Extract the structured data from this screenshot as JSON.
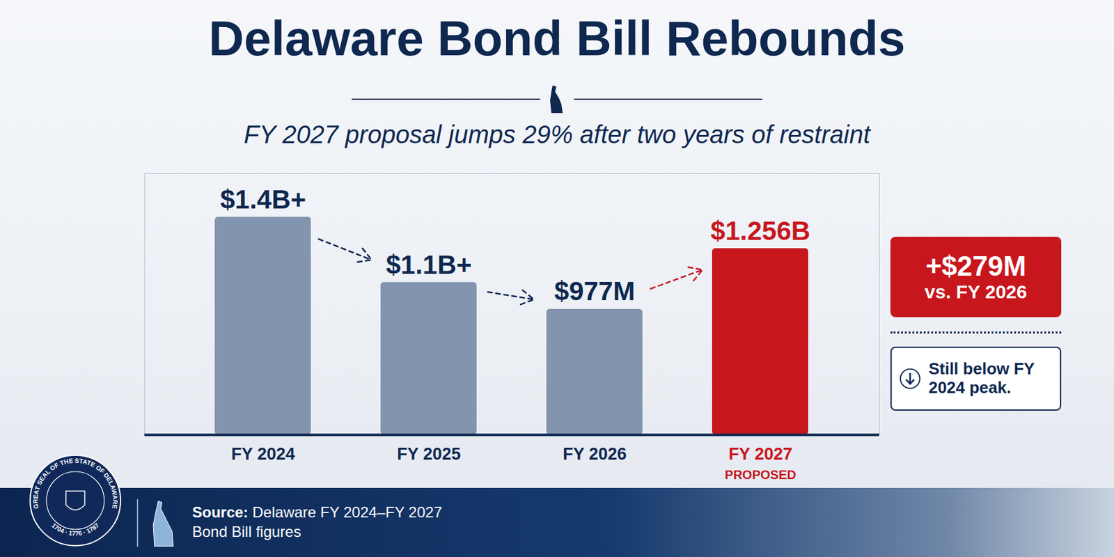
{
  "chart_data": {
    "type": "bar",
    "title": "Delaware Bond Bill Rebounds",
    "subtitle": "FY 2027 proposal jumps 29% after two years of restraint",
    "categories": [
      "FY 2024",
      "FY 2025",
      "FY 2026",
      "FY 2027"
    ],
    "values": [
      1400,
      1100,
      977,
      1256
    ],
    "value_labels": [
      "$1.4B+",
      "$1.1B+",
      "$977M",
      "$1.256B"
    ],
    "colors": [
      "#8394ae",
      "#8394ae",
      "#8394ae",
      "#c8161d"
    ],
    "data_labels": true,
    "tick_labels": "x",
    "ylim": [
      400,
      1600
    ],
    "annotations": [
      {
        "category": "FY 2027",
        "text": "PROPOSED"
      },
      {
        "text": "+$279M",
        "detail": "vs. FY 2026"
      },
      {
        "text": "Still below FY 2024 peak."
      }
    ],
    "source_label": "Source:",
    "source": "Delaware FY 2024–FY 2027 Bond Bill figures",
    "seal_text": "GREAT SEAL OF THE STATE OF DELAWARE",
    "seal_years": "1704 · 1776 · 1787"
  }
}
